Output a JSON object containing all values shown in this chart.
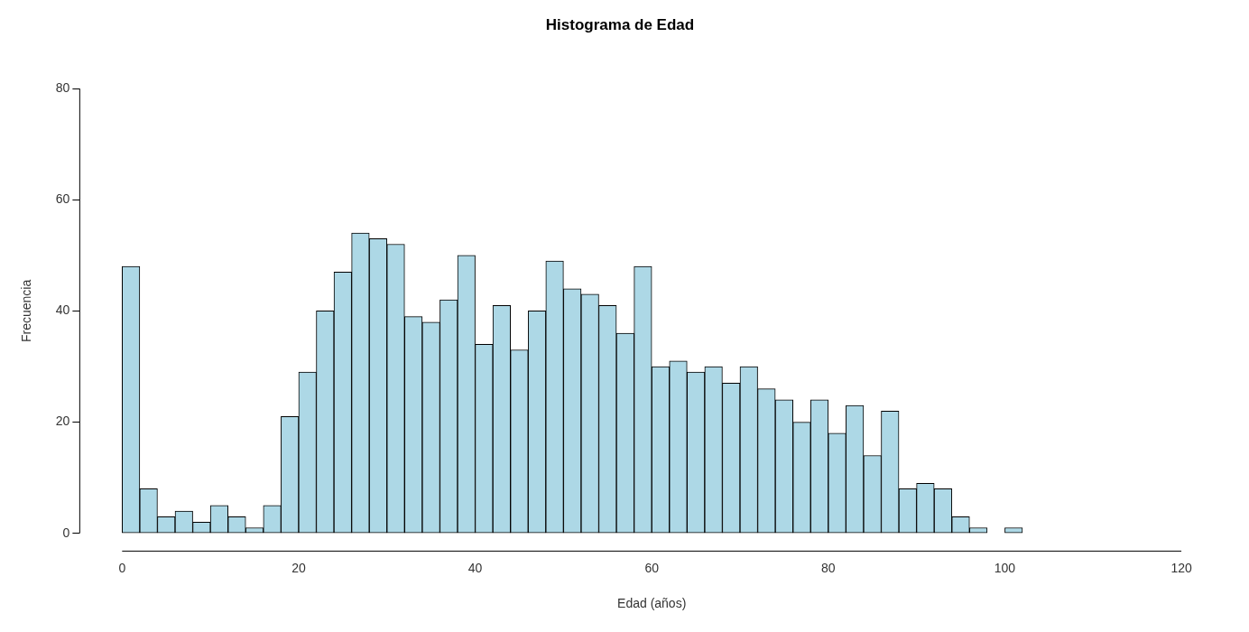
{
  "chart_data": {
    "type": "histogram",
    "title": "Histograma de Edad",
    "xlabel": "Edad (años)",
    "ylabel": "Frecuencia",
    "bins": [
      0,
      2,
      4,
      6,
      8,
      10,
      12,
      14,
      16,
      18,
      20,
      22,
      24,
      26,
      28,
      30,
      32,
      34,
      36,
      38,
      40,
      42,
      44,
      46,
      48,
      50,
      52,
      54,
      56,
      58,
      60,
      62,
      64,
      66,
      68,
      70,
      72,
      74,
      76,
      78,
      80,
      82,
      84,
      86,
      88,
      90,
      92,
      94,
      96,
      98,
      100,
      102
    ],
    "values": [
      48,
      8,
      3,
      4,
      2,
      5,
      3,
      1,
      5,
      21,
      29,
      40,
      47,
      54,
      53,
      52,
      39,
      38,
      42,
      50,
      34,
      41,
      33,
      40,
      49,
      44,
      43,
      41,
      36,
      48,
      30,
      31,
      29,
      30,
      27,
      30,
      26,
      24,
      20,
      24,
      18,
      23,
      14,
      22,
      8,
      9,
      8,
      3,
      1,
      0,
      1
    ],
    "color": "#add8e6",
    "xlim": [
      0,
      120
    ],
    "xticks": [
      0,
      20,
      40,
      60,
      80,
      100,
      120
    ],
    "ylim": [
      0,
      80
    ],
    "yticks": [
      0,
      20,
      40,
      60,
      80
    ],
    "grid": false,
    "legend": false
  }
}
